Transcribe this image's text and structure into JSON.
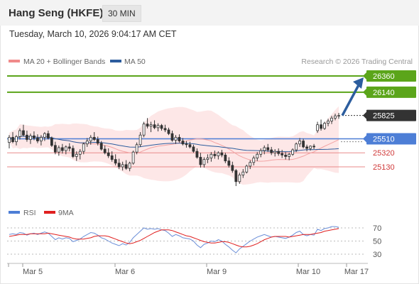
{
  "header": {
    "title": "Hang Seng (HKFE)",
    "interval": "30 MIN"
  },
  "datetime": "Tuesday, March 10, 2026 9:04:17 AM CET",
  "legend": {
    "bollinger": {
      "label": "MA 20 + Bollinger Bands",
      "color": "#f08a8a"
    },
    "ma50": {
      "label": "MA 50",
      "color": "#2c5d9e"
    }
  },
  "copyright": "Research © 2026 Trading Central",
  "levels": [
    {
      "label": "26360",
      "value": 26360,
      "style": "green",
      "color": "#5ba51a"
    },
    {
      "label": "26140",
      "value": 26140,
      "style": "green",
      "color": "#5ba51a"
    },
    {
      "label": "25825",
      "value": 25825,
      "style": "last",
      "color": "#333333"
    },
    {
      "label": "25510",
      "value": 25510,
      "style": "blue",
      "color": "#4d7ed6"
    },
    {
      "label": "25320",
      "value": 25320,
      "style": "red",
      "color": "#e05050"
    },
    {
      "label": "25130",
      "value": 25130,
      "style": "red",
      "color": "#e05050"
    }
  ],
  "rsi_legend": {
    "rsi": {
      "label": "RSI",
      "color": "#4d7ed6"
    },
    "ma9": {
      "label": "9MA",
      "color": "#e02020"
    }
  },
  "rsi_levels": [
    "70",
    "50",
    "30"
  ],
  "x_axis": [
    "Mar 5",
    "Mar 6",
    "Mar 9",
    "Mar 10",
    "Mar 17"
  ],
  "chart_data": {
    "type": "candlestick",
    "price_ylim": [
      24750,
      26450
    ],
    "rsi_ylim": [
      20,
      80
    ],
    "candles": [
      [
        25460,
        25560,
        25380,
        25530
      ],
      [
        25530,
        25600,
        25450,
        25470
      ],
      [
        25470,
        25560,
        25420,
        25540
      ],
      [
        25540,
        25650,
        25500,
        25620
      ],
      [
        25620,
        25700,
        25540,
        25560
      ],
      [
        25560,
        25620,
        25470,
        25500
      ],
      [
        25500,
        25580,
        25440,
        25550
      ],
      [
        25550,
        25610,
        25490,
        25520
      ],
      [
        25520,
        25570,
        25450,
        25480
      ],
      [
        25480,
        25560,
        25420,
        25530
      ],
      [
        25530,
        25600,
        25480,
        25580
      ],
      [
        25580,
        25620,
        25500,
        25520
      ],
      [
        25520,
        25540,
        25400,
        25420
      ],
      [
        25420,
        25470,
        25300,
        25330
      ],
      [
        25330,
        25420,
        25280,
        25390
      ],
      [
        25390,
        25440,
        25310,
        25350
      ],
      [
        25350,
        25420,
        25300,
        25400
      ],
      [
        25400,
        25450,
        25340,
        25380
      ],
      [
        25380,
        25420,
        25250,
        25270
      ],
      [
        25270,
        25340,
        25210,
        25300
      ],
      [
        25300,
        25370,
        25230,
        25340
      ],
      [
        25340,
        25460,
        25300,
        25440
      ],
      [
        25440,
        25520,
        25400,
        25480
      ],
      [
        25480,
        25560,
        25430,
        25530
      ],
      [
        25530,
        25600,
        25480,
        25500
      ],
      [
        25500,
        25540,
        25420,
        25450
      ],
      [
        25450,
        25480,
        25350,
        25370
      ],
      [
        25370,
        25420,
        25300,
        25320
      ],
      [
        25320,
        25380,
        25250,
        25280
      ],
      [
        25280,
        25340,
        25200,
        25230
      ],
      [
        25230,
        25300,
        25150,
        25180
      ],
      [
        25180,
        25240,
        25100,
        25130
      ],
      [
        25130,
        25200,
        25080,
        25160
      ],
      [
        25160,
        25220,
        25090,
        25110
      ],
      [
        25110,
        25200,
        25070,
        25180
      ],
      [
        25180,
        25350,
        25160,
        25330
      ],
      [
        25330,
        25460,
        25300,
        25430
      ],
      [
        25430,
        25600,
        25400,
        25560
      ],
      [
        25560,
        25740,
        25530,
        25710
      ],
      [
        25710,
        25790,
        25650,
        25680
      ],
      [
        25680,
        25740,
        25600,
        25700
      ],
      [
        25700,
        25760,
        25640,
        25660
      ],
      [
        25660,
        25720,
        25610,
        25690
      ],
      [
        25690,
        25710,
        25620,
        25650
      ],
      [
        25650,
        25700,
        25600,
        25630
      ],
      [
        25630,
        25660,
        25560,
        25580
      ],
      [
        25580,
        25620,
        25470,
        25490
      ],
      [
        25490,
        25560,
        25440,
        25530
      ],
      [
        25530,
        25570,
        25460,
        25480
      ],
      [
        25480,
        25520,
        25420,
        25440
      ],
      [
        25440,
        25480,
        25390,
        25430
      ],
      [
        25430,
        25470,
        25380,
        25400
      ],
      [
        25400,
        25430,
        25320,
        25340
      ],
      [
        25340,
        25380,
        25240,
        25260
      ],
      [
        25260,
        25320,
        25120,
        25160
      ],
      [
        25160,
        25260,
        25120,
        25230
      ],
      [
        25230,
        25300,
        25180,
        25250
      ],
      [
        25250,
        25330,
        25200,
        25300
      ],
      [
        25300,
        25350,
        25240,
        25280
      ],
      [
        25280,
        25340,
        25230,
        25320
      ],
      [
        25320,
        25360,
        25260,
        25290
      ],
      [
        25290,
        25320,
        25180,
        25210
      ],
      [
        25210,
        25260,
        25120,
        25150
      ],
      [
        25150,
        25200,
        25050,
        25080
      ],
      [
        25080,
        25100,
        24870,
        24930
      ],
      [
        24930,
        25050,
        24900,
        25020
      ],
      [
        25020,
        25100,
        24980,
        25060
      ],
      [
        25060,
        25160,
        25040,
        25140
      ],
      [
        25140,
        25220,
        25100,
        25190
      ],
      [
        25190,
        25280,
        25150,
        25250
      ],
      [
        25250,
        25330,
        25210,
        25300
      ],
      [
        25300,
        25380,
        25260,
        25350
      ],
      [
        25350,
        25420,
        25300,
        25390
      ],
      [
        25390,
        25440,
        25330,
        25360
      ],
      [
        25360,
        25400,
        25290,
        25320
      ],
      [
        25320,
        25370,
        25270,
        25340
      ],
      [
        25340,
        25380,
        25280,
        25310
      ],
      [
        25310,
        25360,
        25250,
        25290
      ],
      [
        25290,
        25330,
        25230,
        25270
      ],
      [
        25270,
        25320,
        25220,
        25300
      ],
      [
        25300,
        25380,
        25280,
        25360
      ],
      [
        25360,
        25460,
        25330,
        25440
      ],
      [
        25440,
        25520,
        25400,
        25480
      ],
      [
        25480,
        25510,
        25380,
        25400
      ],
      [
        25400,
        25430,
        25340,
        25380
      ],
      [
        25380,
        25420,
        25350,
        25410
      ],
      [
        25410,
        25440,
        25370,
        25400
      ],
      [
        25620,
        25740,
        25590,
        25700
      ],
      [
        25700,
        25770,
        25620,
        25650
      ],
      [
        25650,
        25740,
        25630,
        25720
      ],
      [
        25720,
        25780,
        25680,
        25750
      ],
      [
        25750,
        25820,
        25710,
        25790
      ],
      [
        25790,
        25850,
        25760,
        25820
      ],
      [
        25820,
        25860,
        25780,
        25825
      ]
    ],
    "rsi": [
      60,
      61,
      60,
      63,
      62,
      59,
      61,
      62,
      60,
      62,
      64,
      62,
      57,
      52,
      55,
      53,
      55,
      54,
      49,
      51,
      53,
      57,
      60,
      63,
      62,
      59,
      55,
      53,
      50,
      47,
      45,
      43,
      46,
      44,
      48,
      55,
      60,
      65,
      70,
      68,
      69,
      68,
      69,
      67,
      66,
      62,
      57,
      60,
      58,
      55,
      54,
      53,
      50,
      44,
      40,
      45,
      47,
      50,
      49,
      52,
      50,
      45,
      41,
      36,
      32,
      38,
      42,
      46,
      50,
      53,
      56,
      58,
      60,
      58,
      56,
      57,
      56,
      55,
      54,
      56,
      59,
      63,
      65,
      60,
      58,
      60,
      59,
      68,
      66,
      69,
      70,
      72,
      72,
      71
    ],
    "rsi_ma9": [
      57,
      58,
      59,
      60,
      60,
      60,
      61,
      61,
      61,
      61,
      61,
      62,
      61,
      60,
      59,
      58,
      57,
      56,
      54,
      53,
      53,
      53,
      54,
      55,
      57,
      58,
      58,
      58,
      57,
      55,
      53,
      51,
      49,
      47,
      46,
      47,
      49,
      51,
      54,
      57,
      60,
      63,
      65,
      67,
      67,
      67,
      66,
      64,
      62,
      60,
      58,
      57,
      55,
      53,
      51,
      49,
      48,
      47,
      47,
      48,
      49,
      49,
      48,
      46,
      44,
      42,
      41,
      41,
      42,
      44,
      46,
      49,
      52,
      54,
      56,
      57,
      57,
      57,
      57,
      56,
      57,
      58,
      59,
      60,
      60,
      60,
      61,
      62,
      63,
      65,
      66,
      67,
      68,
      69
    ]
  }
}
